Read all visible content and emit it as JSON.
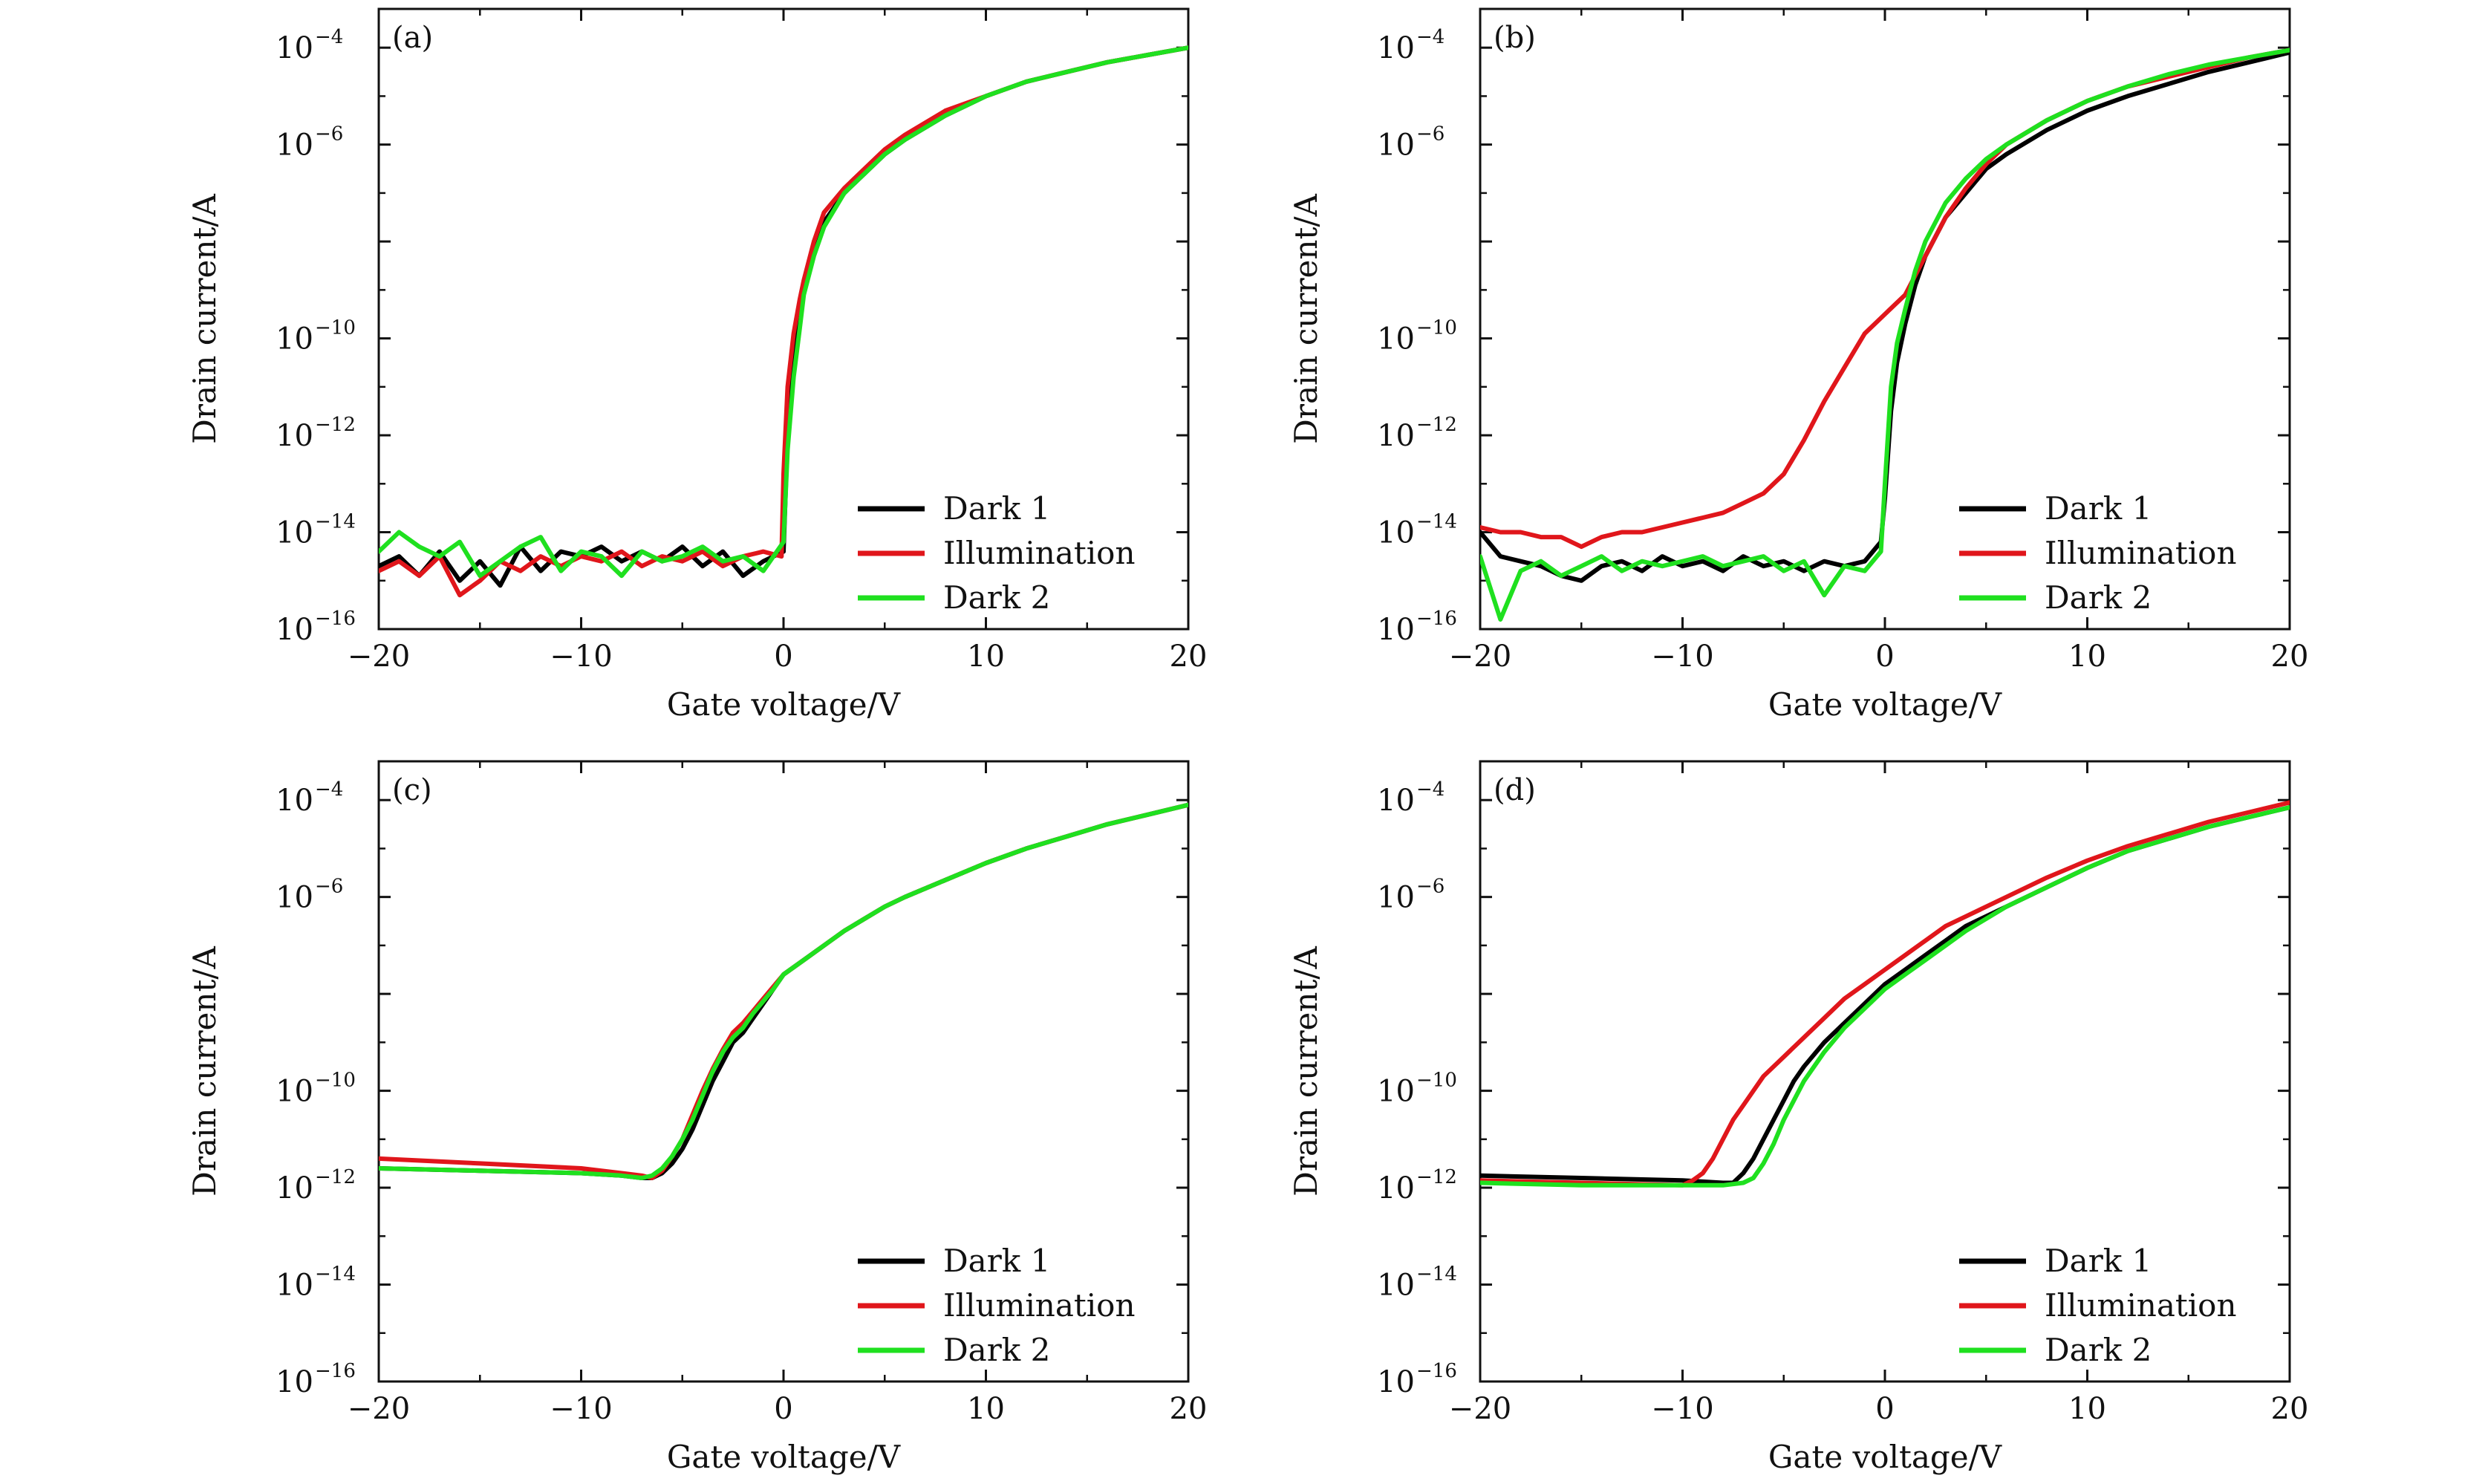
{
  "chart_data": [
    {
      "type": "line",
      "panel_label": "(a)",
      "xlabel": "Gate voltage/V",
      "ylabel": "Drain current/A",
      "xlim": [
        -20,
        20
      ],
      "ylim": [
        -16,
        -3.2
      ],
      "y_scale": "log",
      "xticks": [
        -20,
        -10,
        0,
        10,
        20
      ],
      "xtick_labels": [
        "−20",
        "−10",
        "0",
        "10",
        "20"
      ],
      "yticks": [
        -16,
        -14,
        -12,
        -10,
        -6,
        -4
      ],
      "ytick_labels": [
        {
          "base": "10",
          "exp": "−16"
        },
        {
          "base": "10",
          "exp": "−14"
        },
        {
          "base": "10",
          "exp": "−12"
        },
        {
          "base": "10",
          "exp": "−10"
        },
        {
          "base": "10",
          "exp": "−6"
        },
        {
          "base": "10",
          "exp": "−4"
        }
      ],
      "legend": "lower-right",
      "series": [
        {
          "name": "Dark 1",
          "color": "#000000",
          "x": [
            -20,
            -19,
            -18,
            -17,
            -16,
            -15,
            -14,
            -13,
            -12,
            -11,
            -10,
            -9,
            -8,
            -7,
            -6,
            -5,
            -4,
            -3,
            -2,
            -1,
            0.0,
            0.2,
            0.5,
            0.8,
            1,
            1.5,
            2,
            3,
            4,
            5,
            6,
            8,
            10,
            12,
            14,
            16,
            18,
            20
          ],
          "y": [
            -14.7,
            -14.5,
            -14.9,
            -14.4,
            -15.0,
            -14.6,
            -15.1,
            -14.3,
            -14.8,
            -14.4,
            -14.5,
            -14.3,
            -14.6,
            -14.4,
            -14.6,
            -14.3,
            -14.7,
            -14.4,
            -14.9,
            -14.6,
            -14.4,
            -12.0,
            -10.5,
            -9.6,
            -9.0,
            -8.2,
            -7.6,
            -7.0,
            -6.6,
            -6.2,
            -5.9,
            -5.4,
            -5.0,
            -4.7,
            -4.5,
            -4.3,
            -4.15,
            -4.0
          ]
        },
        {
          "name": "Illumination",
          "color": "#e0161b",
          "x": [
            -20,
            -19,
            -18,
            -17,
            -16,
            -15,
            -14,
            -13,
            -12,
            -11,
            -10,
            -9,
            -8,
            -7,
            -6,
            -5,
            -4,
            -3,
            -2,
            -1,
            -0.1,
            0.0,
            0.2,
            0.5,
            0.8,
            1,
            1.5,
            2,
            3,
            4,
            5,
            6,
            8,
            10,
            12,
            14,
            16,
            18,
            20
          ],
          "y": [
            -14.8,
            -14.6,
            -14.9,
            -14.5,
            -15.3,
            -15.0,
            -14.6,
            -14.8,
            -14.5,
            -14.7,
            -14.5,
            -14.6,
            -14.4,
            -14.7,
            -14.5,
            -14.6,
            -14.4,
            -14.7,
            -14.5,
            -14.4,
            -14.5,
            -12.8,
            -11.0,
            -9.9,
            -9.2,
            -8.8,
            -8.0,
            -7.4,
            -6.9,
            -6.5,
            -6.1,
            -5.8,
            -5.3,
            -5.0,
            -4.7,
            -4.5,
            -4.3,
            -4.15,
            -4.0
          ]
        },
        {
          "name": "Dark 2",
          "color": "#1fe01f",
          "x": [
            -20,
            -19,
            -18,
            -17,
            -16,
            -15,
            -14,
            -13,
            -12,
            -11,
            -10,
            -9,
            -8,
            -7,
            -6,
            -5,
            -4,
            -3,
            -2,
            -1,
            0.0,
            0.2,
            0.5,
            0.8,
            1,
            1.5,
            2,
            3,
            4,
            5,
            6,
            8,
            10,
            12,
            14,
            16,
            18,
            20
          ],
          "y": [
            -14.4,
            -14.0,
            -14.3,
            -14.5,
            -14.2,
            -14.9,
            -14.6,
            -14.3,
            -14.1,
            -14.8,
            -14.4,
            -14.5,
            -14.9,
            -14.4,
            -14.6,
            -14.5,
            -14.3,
            -14.6,
            -14.5,
            -14.8,
            -14.2,
            -12.3,
            -10.8,
            -9.8,
            -9.1,
            -8.3,
            -7.7,
            -7.0,
            -6.6,
            -6.2,
            -5.9,
            -5.4,
            -5.0,
            -4.7,
            -4.5,
            -4.3,
            -4.15,
            -4.0
          ]
        }
      ]
    },
    {
      "type": "line",
      "panel_label": "(b)",
      "xlabel": "Gate voltage/V",
      "ylabel": "Drain current/A",
      "xlim": [
        -20,
        20
      ],
      "ylim": [
        -16,
        -3.2
      ],
      "y_scale": "log",
      "xticks": [
        -20,
        -10,
        0,
        10,
        20
      ],
      "xtick_labels": [
        "−20",
        "−10",
        "0",
        "10",
        "20"
      ],
      "yticks": [
        -16,
        -14,
        -12,
        -10,
        -6,
        -4
      ],
      "ytick_labels": [
        {
          "base": "10",
          "exp": "−16"
        },
        {
          "base": "10",
          "exp": "−14"
        },
        {
          "base": "10",
          "exp": "−12"
        },
        {
          "base": "10",
          "exp": "−10"
        },
        {
          "base": "10",
          "exp": "−6"
        },
        {
          "base": "10",
          "exp": "−4"
        }
      ],
      "legend": "lower-right",
      "series": [
        {
          "name": "Dark 1",
          "color": "#000000",
          "x": [
            -20,
            -19,
            -18,
            -17,
            -16,
            -15,
            -14,
            -13,
            -12,
            -11,
            -10,
            -9,
            -8,
            -7,
            -6,
            -5,
            -4,
            -3,
            -2,
            -1,
            -0.2,
            0.0,
            0.3,
            0.6,
            1,
            1.5,
            2,
            3,
            4,
            5,
            6,
            8,
            10,
            12,
            14,
            16,
            18,
            20
          ],
          "y": [
            -14.0,
            -14.5,
            -14.6,
            -14.7,
            -14.9,
            -15.0,
            -14.7,
            -14.6,
            -14.8,
            -14.5,
            -14.7,
            -14.6,
            -14.8,
            -14.5,
            -14.7,
            -14.6,
            -14.8,
            -14.6,
            -14.7,
            -14.6,
            -14.2,
            -13.3,
            -11.5,
            -10.5,
            -9.7,
            -8.9,
            -8.3,
            -7.5,
            -7.0,
            -6.5,
            -6.2,
            -5.7,
            -5.3,
            -5.0,
            -4.75,
            -4.5,
            -4.3,
            -4.1
          ]
        },
        {
          "name": "Illumination",
          "color": "#e0161b",
          "x": [
            -20,
            -19,
            -18,
            -17,
            -16,
            -15,
            -14,
            -13,
            -12,
            -11,
            -10,
            -9,
            -8,
            -7,
            -6,
            -5,
            -4,
            -3,
            -2,
            -1,
            0,
            1,
            2,
            3,
            4,
            5,
            6,
            8,
            10,
            12,
            14,
            16,
            18,
            20
          ],
          "y": [
            -13.9,
            -14.0,
            -14.0,
            -14.1,
            -14.1,
            -14.3,
            -14.1,
            -14.0,
            -14.0,
            -13.9,
            -13.8,
            -13.7,
            -13.6,
            -13.4,
            -13.2,
            -12.8,
            -12.1,
            -11.3,
            -10.6,
            -9.9,
            -9.5,
            -9.1,
            -8.3,
            -7.5,
            -6.9,
            -6.4,
            -6.0,
            -5.5,
            -5.1,
            -4.8,
            -4.6,
            -4.4,
            -4.2,
            -4.05
          ]
        },
        {
          "name": "Dark 2",
          "color": "#1fe01f",
          "x": [
            -20,
            -19,
            -18,
            -17,
            -16,
            -15,
            -14,
            -13,
            -12,
            -11,
            -10,
            -9,
            -8,
            -7,
            -6,
            -5,
            -4,
            -3,
            -2,
            -1,
            -0.2,
            0.0,
            0.3,
            0.6,
            1,
            1.5,
            2,
            3,
            4,
            5,
            6,
            8,
            10,
            12,
            14,
            16,
            18,
            20
          ],
          "y": [
            -14.5,
            -15.8,
            -14.8,
            -14.6,
            -14.9,
            -14.7,
            -14.5,
            -14.8,
            -14.6,
            -14.7,
            -14.6,
            -14.5,
            -14.7,
            -14.6,
            -14.5,
            -14.8,
            -14.6,
            -15.3,
            -14.7,
            -14.8,
            -14.4,
            -13.0,
            -11.0,
            -10.1,
            -9.4,
            -8.6,
            -8.0,
            -7.2,
            -6.7,
            -6.3,
            -6.0,
            -5.5,
            -5.1,
            -4.8,
            -4.55,
            -4.35,
            -4.2,
            -4.05
          ]
        }
      ]
    },
    {
      "type": "line",
      "panel_label": "(c)",
      "xlabel": "Gate voltage/V",
      "ylabel": "Drain current/A",
      "xlim": [
        -20,
        20
      ],
      "ylim": [
        -16,
        -3.2
      ],
      "y_scale": "log",
      "xticks": [
        -20,
        -10,
        0,
        10,
        20
      ],
      "xtick_labels": [
        "−20",
        "−10",
        "0",
        "10",
        "20"
      ],
      "yticks": [
        -16,
        -14,
        -12,
        -10,
        -6,
        -4
      ],
      "ytick_labels": [
        {
          "base": "10",
          "exp": "−16"
        },
        {
          "base": "10",
          "exp": "−14"
        },
        {
          "base": "10",
          "exp": "−12"
        },
        {
          "base": "10",
          "exp": "−10"
        },
        {
          "base": "10",
          "exp": "−6"
        },
        {
          "base": "10",
          "exp": "−4"
        }
      ],
      "legend": "lower-right",
      "series": [
        {
          "name": "Dark 1",
          "color": "#000000",
          "x": [
            -20,
            -15,
            -10,
            -8,
            -7,
            -6.5,
            -6,
            -5.5,
            -5,
            -4.5,
            -4,
            -3.5,
            -3,
            -2.5,
            -2,
            -1.5,
            -1,
            -0.5,
            0,
            1,
            2,
            3,
            4,
            5,
            6,
            8,
            10,
            12,
            14,
            16,
            18,
            20
          ],
          "y": [
            -11.6,
            -11.65,
            -11.7,
            -11.75,
            -11.8,
            -11.8,
            -11.7,
            -11.5,
            -11.2,
            -10.8,
            -10.3,
            -9.8,
            -9.4,
            -9.0,
            -8.8,
            -8.5,
            -8.2,
            -7.9,
            -7.6,
            -7.3,
            -7.0,
            -6.7,
            -6.45,
            -6.2,
            -6.0,
            -5.65,
            -5.3,
            -5.0,
            -4.75,
            -4.5,
            -4.3,
            -4.1
          ]
        },
        {
          "name": "Illumination",
          "color": "#e0161b",
          "x": [
            -20,
            -15,
            -10,
            -8,
            -7,
            -6.5,
            -6,
            -5.5,
            -5,
            -4.5,
            -4,
            -3.5,
            -3,
            -2.5,
            -2,
            -1.5,
            -1,
            -0.5,
            0,
            1,
            2,
            3,
            4,
            5,
            6,
            8,
            10,
            12,
            14,
            16,
            18,
            20
          ],
          "y": [
            -11.4,
            -11.5,
            -11.6,
            -11.7,
            -11.75,
            -11.8,
            -11.65,
            -11.35,
            -11.0,
            -10.5,
            -10.0,
            -9.55,
            -9.15,
            -8.8,
            -8.6,
            -8.35,
            -8.1,
            -7.85,
            -7.6,
            -7.3,
            -7.0,
            -6.7,
            -6.45,
            -6.2,
            -6.0,
            -5.65,
            -5.3,
            -5.0,
            -4.75,
            -4.5,
            -4.3,
            -4.1
          ]
        },
        {
          "name": "Dark 2",
          "color": "#1fe01f",
          "x": [
            -20,
            -15,
            -10,
            -8,
            -7,
            -6.5,
            -6,
            -5.5,
            -5,
            -4.5,
            -4,
            -3.5,
            -3,
            -2.5,
            -2,
            -1.5,
            -1,
            -0.5,
            0,
            1,
            2,
            3,
            4,
            5,
            6,
            8,
            10,
            12,
            14,
            16,
            18,
            20
          ],
          "y": [
            -11.6,
            -11.65,
            -11.7,
            -11.75,
            -11.8,
            -11.75,
            -11.6,
            -11.35,
            -11.0,
            -10.6,
            -10.1,
            -9.6,
            -9.2,
            -8.9,
            -8.7,
            -8.4,
            -8.15,
            -7.9,
            -7.6,
            -7.3,
            -7.0,
            -6.7,
            -6.45,
            -6.2,
            -6.0,
            -5.65,
            -5.3,
            -5.0,
            -4.75,
            -4.5,
            -4.3,
            -4.1
          ]
        }
      ]
    },
    {
      "type": "line",
      "panel_label": "(d)",
      "xlabel": "Gate voltage/V",
      "ylabel": "Drain current/A",
      "xlim": [
        -20,
        20
      ],
      "ylim": [
        -16,
        -3.2
      ],
      "y_scale": "log",
      "xticks": [
        -20,
        -10,
        0,
        10,
        20
      ],
      "xtick_labels": [
        "−20",
        "−10",
        "0",
        "10",
        "20"
      ],
      "yticks": [
        -16,
        -14,
        -12,
        -10,
        -6,
        -4
      ],
      "ytick_labels": [
        {
          "base": "10",
          "exp": "−16"
        },
        {
          "base": "10",
          "exp": "−14"
        },
        {
          "base": "10",
          "exp": "−12"
        },
        {
          "base": "10",
          "exp": "−10"
        },
        {
          "base": "10",
          "exp": "−6"
        },
        {
          "base": "10",
          "exp": "−4"
        }
      ],
      "legend": "lower-right",
      "series": [
        {
          "name": "Dark 1",
          "color": "#000000",
          "x": [
            -20,
            -15,
            -10,
            -8,
            -7.5,
            -7,
            -6.5,
            -6,
            -5.5,
            -5,
            -4.5,
            -4,
            -3,
            -2,
            -1,
            0,
            1,
            2,
            3,
            4,
            6,
            8,
            10,
            12,
            14,
            16,
            18,
            20
          ],
          "y": [
            -11.75,
            -11.8,
            -11.85,
            -11.9,
            -11.9,
            -11.7,
            -11.4,
            -11.0,
            -10.6,
            -10.2,
            -9.8,
            -9.5,
            -9.0,
            -8.6,
            -8.2,
            -7.8,
            -7.5,
            -7.2,
            -6.9,
            -6.6,
            -6.2,
            -5.8,
            -5.4,
            -5.05,
            -4.8,
            -4.55,
            -4.35,
            -4.15
          ]
        },
        {
          "name": "Illumination",
          "color": "#e0161b",
          "x": [
            -20,
            -15,
            -10,
            -9.5,
            -9,
            -8.5,
            -8,
            -7.5,
            -7,
            -6.5,
            -6,
            -5.5,
            -5,
            -4,
            -3,
            -2,
            -1,
            0,
            1,
            2,
            3,
            4,
            6,
            8,
            10,
            12,
            14,
            16,
            18,
            20
          ],
          "y": [
            -11.85,
            -11.9,
            -11.95,
            -11.85,
            -11.7,
            -11.4,
            -11.0,
            -10.6,
            -10.3,
            -10.0,
            -9.7,
            -9.5,
            -9.3,
            -8.9,
            -8.5,
            -8.1,
            -7.8,
            -7.5,
            -7.2,
            -6.9,
            -6.6,
            -6.4,
            -6.0,
            -5.6,
            -5.25,
            -4.95,
            -4.7,
            -4.45,
            -4.25,
            -4.05
          ]
        },
        {
          "name": "Dark 2",
          "color": "#1fe01f",
          "x": [
            -20,
            -15,
            -10,
            -8,
            -7,
            -6.5,
            -6,
            -5.5,
            -5,
            -4.5,
            -4,
            -3,
            -2,
            -1,
            0,
            1,
            2,
            3,
            4,
            6,
            8,
            10,
            12,
            14,
            16,
            18,
            20
          ],
          "y": [
            -11.9,
            -11.95,
            -11.95,
            -11.95,
            -11.9,
            -11.8,
            -11.5,
            -11.1,
            -10.6,
            -10.2,
            -9.8,
            -9.2,
            -8.7,
            -8.3,
            -7.9,
            -7.6,
            -7.3,
            -7.0,
            -6.7,
            -6.2,
            -5.8,
            -5.4,
            -5.05,
            -4.8,
            -4.55,
            -4.35,
            -4.15
          ]
        }
      ]
    }
  ]
}
